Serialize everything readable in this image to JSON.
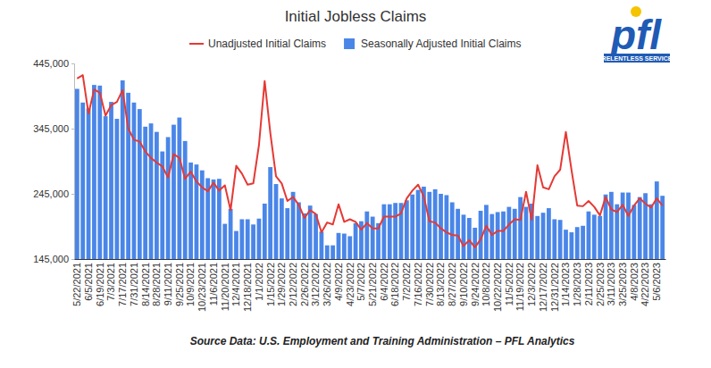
{
  "chart_data": {
    "type": "bar",
    "title": "Initial Jobless Claims",
    "source": "Source Data: U.S. Employment and Training Administration – PFL Analytics",
    "logo": {
      "text": "pfl",
      "tagline": "RELENTLESS SERVICE"
    },
    "categories": [
      "5/22/2021",
      null,
      "6/5/2021",
      null,
      "6/19/2021",
      null,
      "7/3/2021",
      null,
      "7/17/2021",
      null,
      "7/31/2021",
      null,
      "8/14/2021",
      null,
      "8/28/2021",
      null,
      "9/11/2021",
      null,
      "9/25/2021",
      null,
      "10/9/2021",
      null,
      "10/23/2021",
      null,
      "11/6/2021",
      null,
      "11/20/2021",
      null,
      "12/4/2021",
      null,
      "12/18/2021",
      null,
      "1/1/2022",
      null,
      "1/15/2022",
      null,
      "1/29/2022",
      null,
      "2/12/2022",
      null,
      "2/26/2022",
      null,
      "3/12/2022",
      null,
      "3/26/2022",
      null,
      "4/9/2022",
      null,
      "4/23/2022",
      null,
      "5/7/2022",
      null,
      "5/21/2022",
      null,
      "6/4/2022",
      null,
      "6/18/2022",
      null,
      "7/2/2022",
      null,
      "7/16/2022",
      null,
      "7/30/2022",
      null,
      "8/13/2022",
      null,
      "8/27/2022",
      null,
      "9/10/2022",
      null,
      "9/24/2022",
      null,
      "10/8/2022",
      null,
      "10/22/2022",
      null,
      "11/5/2022",
      null,
      "11/19/2022",
      null,
      "12/3/2022",
      null,
      "12/17/2022",
      null,
      "12/31/2022",
      null,
      "1/14/2023",
      null,
      "1/28/2023",
      null,
      "2/11/2023",
      null,
      "2/25/2023",
      null,
      "3/11/2023",
      null,
      "3/25/2023",
      null,
      "4/8/2023",
      null,
      "4/22/2023",
      null,
      "5/6/2023",
      null
    ],
    "series": [
      {
        "name": "Unadjusted Initial Claims",
        "type": "line",
        "color": "#e53935",
        "values": [
          422000,
          427000,
          368000,
          405000,
          400000,
          365000,
          381000,
          386000,
          404000,
          345000,
          328000,
          325000,
          310000,
          300000,
          293000,
          287000,
          270000,
          306000,
          300000,
          268000,
          279000,
          264000,
          255000,
          249000,
          262000,
          250000,
          258000,
          220000,
          288000,
          276000,
          259000,
          261000,
          320000,
          418000,
          338000,
          272000,
          261000,
          234000,
          240000,
          228000,
          208000,
          220000,
          214000,
          186000,
          201000,
          198000,
          229000,
          202000,
          206000,
          202000,
          190000,
          200000,
          192000,
          192000,
          210000,
          210000,
          210000,
          215000,
          238000,
          250000,
          259000,
          241000,
          203000,
          201000,
          192000,
          186000,
          182000,
          181000,
          165000,
          174000,
          163000,
          175000,
          196000,
          182000,
          188000,
          188000,
          198000,
          206000,
          205000,
          248000,
          205000,
          289000,
          255000,
          252000,
          272000,
          282000,
          340000,
          281000,
          227000,
          226000,
          234000,
          225000,
          212000,
          240000,
          221000,
          217000,
          228000,
          211000,
          227000,
          238000,
          230000,
          224000,
          238000,
          227000
        ]
      },
      {
        "name": "Seasonally Adjusted Initial Claims",
        "type": "bar",
        "color": "#4a86e8",
        "values": [
          406000,
          385000,
          376000,
          412000,
          411000,
          364000,
          386000,
          360000,
          419000,
          400000,
          385000,
          375000,
          348000,
          353000,
          340000,
          310000,
          332000,
          351000,
          362000,
          326000,
          293000,
          290000,
          281000,
          269000,
          267000,
          268000,
          199000,
          222000,
          188000,
          206000,
          206000,
          198000,
          207000,
          230000,
          286000,
          260000,
          238000,
          223000,
          248000,
          232000,
          215000,
          227000,
          214000,
          187000,
          166000,
          166000,
          185000,
          184000,
          180000,
          200000,
          203000,
          218000,
          210000,
          200000,
          229000,
          229000,
          231000,
          231000,
          235000,
          244000,
          251000,
          256000,
          248000,
          252000,
          245000,
          243000,
          232000,
          222000,
          213000,
          208000,
          193000,
          219000,
          228000,
          214000,
          217000,
          218000,
          225000,
          222000,
          240000,
          225000,
          230000,
          211000,
          216000,
          223000,
          206000,
          205000,
          190000,
          186000,
          194000,
          196000,
          218000,
          213000,
          211000,
          244000,
          248000,
          229000,
          247000,
          247000,
          228000,
          240000,
          246000,
          229000,
          264000,
          242000
        ]
      }
    ],
    "ylim": [
      145000,
      445000
    ],
    "yticks": [
      {
        "value": 145000,
        "label": "145,000"
      },
      {
        "value": 245000,
        "label": "245,000"
      },
      {
        "value": 345000,
        "label": "345,000"
      },
      {
        "value": 445000,
        "label": "445,000"
      }
    ],
    "grid": false,
    "legend": "top"
  }
}
